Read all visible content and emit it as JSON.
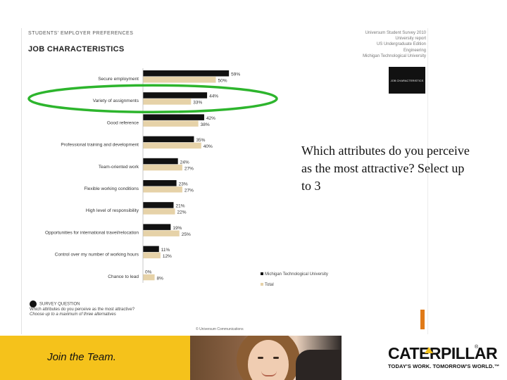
{
  "slide": {
    "question": "Which attributes do you perceive as the most attractive? Select up to 3"
  },
  "report": {
    "kicker": "STUDENTS' EMPLOYER PREFERENCES",
    "title": "JOB CHARACTERISTICS",
    "source_lines": [
      "Universum Student Survey 2010",
      "University report",
      "US Undergraduate Edition",
      "Engineering",
      "Michigan Technological University"
    ],
    "badge": "JOB CHARACTERISTICS",
    "survey_heading": "SURVEY QUESTION",
    "survey_question": "Which attributes do you perceive as the most attractive?",
    "survey_note": "Choose up to a maximum of three alternatives",
    "credit": "© Universum Communications"
  },
  "chart_data": {
    "type": "bar",
    "orientation": "horizontal",
    "categories": [
      "Secure employment",
      "Variety of assignments",
      "Good reference",
      "Professional training and development",
      "Team-oriented work",
      "Flexible working conditions",
      "High level of responsibility",
      "Opportunities for international travel/relocation",
      "Control over my number of working hours",
      "Chance to lead"
    ],
    "series": [
      {
        "name": "Michigan Technological University",
        "color": "#111111",
        "values": [
          59,
          44,
          42,
          35,
          24,
          23,
          21,
          19,
          11,
          0
        ],
        "labels": [
          "59%",
          "44%",
          "42%",
          "35%",
          "24%",
          "23%",
          "21%",
          "19%",
          "11%",
          "0%"
        ]
      },
      {
        "name": "Total",
        "color": "#e6d2a8",
        "values": [
          50,
          33,
          38,
          40,
          27,
          27,
          22,
          25,
          12,
          8
        ],
        "labels": [
          "50%",
          "33%",
          "38%",
          "40%",
          "27%",
          "27%",
          "22%",
          "25%",
          "12%",
          "8%"
        ]
      }
    ],
    "highlight_category": "Variety of assignments",
    "highlight_color": "#2db52d",
    "legend_position": "bottom-right",
    "grid": false
  },
  "footer": {
    "slogan": "Join the Team.",
    "brand": "CATERPILLAR",
    "registered": "®",
    "tagline": "TODAY'S WORK. TOMORROW'S WORLD.™",
    "brand_yellow": "#f5c21b"
  }
}
